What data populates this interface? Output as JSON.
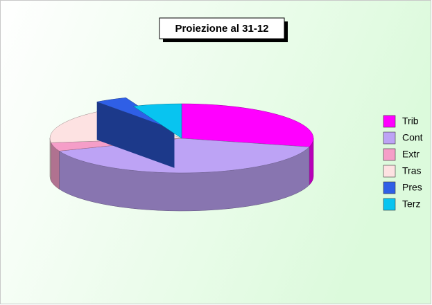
{
  "chart_data": {
    "type": "pie3d",
    "title": "Proiezione al 31-12",
    "categories": [
      "Trib",
      "Cont",
      "Extr",
      "Tras",
      "Pres",
      "Terz"
    ],
    "values": [
      29,
      40,
      4,
      17,
      4,
      6
    ],
    "colors": [
      "#ff00ff",
      "#bda3f5",
      "#f59ec8",
      "#fde2e2",
      "#2f5fe6",
      "#08c4f0"
    ],
    "exploded": [
      "Pres"
    ],
    "legend": "right"
  }
}
